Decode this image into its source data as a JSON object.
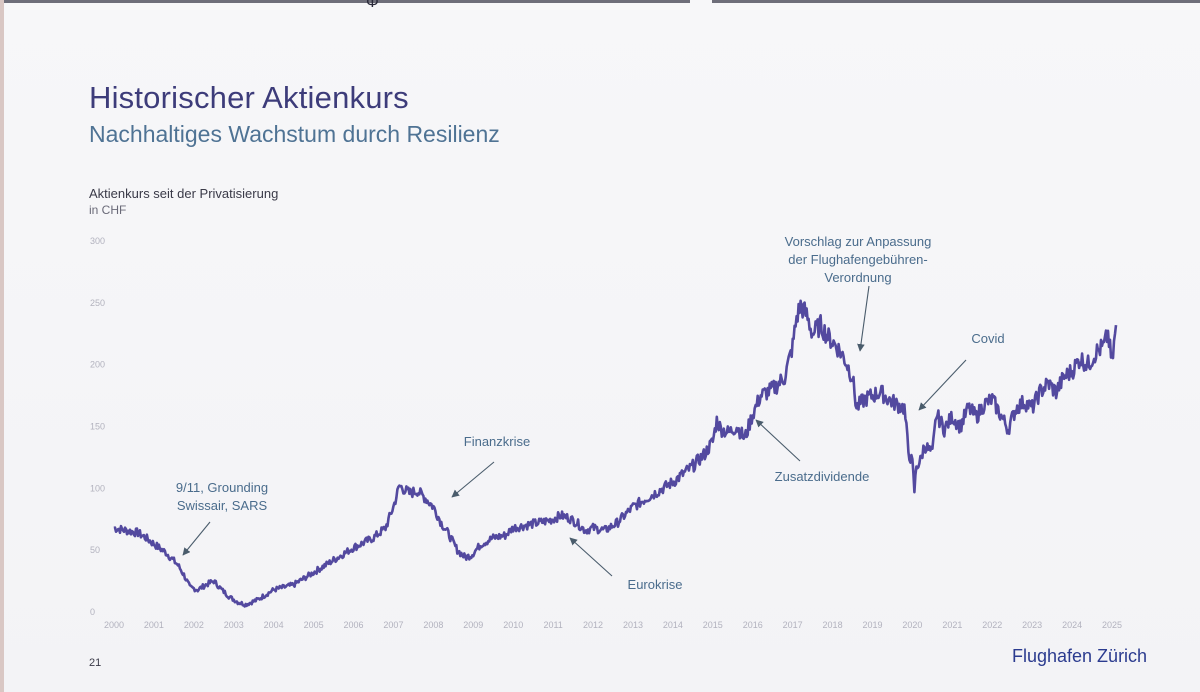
{
  "slide": {
    "title": "Historischer Aktienkurs",
    "subtitle": "Nachhaltiges Wachstum durch Resilienz",
    "chart_caption": "Aktienkurs seit der Privatisierung",
    "chart_unit": "in CHF",
    "page_number": "21",
    "logo_text": "Flughafen Zürich"
  },
  "colors": {
    "title": "#3d3c7a",
    "subtitle": "#4f7394",
    "line": "#4a3f9a",
    "annotation": "#4a6c8c",
    "logo": "#2b3b8f"
  },
  "chart_data": {
    "type": "line",
    "xlabel": "",
    "ylabel": "",
    "xlim": [
      2000,
      2025.2
    ],
    "ylim": [
      0,
      300
    ],
    "y_ticks": [
      0,
      50,
      100,
      150,
      200,
      250,
      300
    ],
    "x_ticks": [
      "2000",
      "2001",
      "2002",
      "2003",
      "2004",
      "2005",
      "2006",
      "2007",
      "2008",
      "2009",
      "2010",
      "2011",
      "2012",
      "2013",
      "2014",
      "2015",
      "2016",
      "2017",
      "2018",
      "2019",
      "2020",
      "2021",
      "2022",
      "2023",
      "2024",
      "2025"
    ],
    "grid": false,
    "legend": "none",
    "series": [
      {
        "x": [
          2000.0,
          2000.3,
          2000.6,
          2000.8,
          2001.0,
          2001.3,
          2001.6,
          2001.75,
          2001.9,
          2002.1,
          2002.3,
          2002.5,
          2002.7,
          2002.9,
          2003.1,
          2003.3,
          2003.6,
          2004.0,
          2004.5,
          2005.0,
          2005.5,
          2006.0,
          2006.5,
          2006.8,
          2007.0,
          2007.15,
          2007.4,
          2007.6,
          2007.8,
          2008.0,
          2008.2,
          2008.4,
          2008.6,
          2008.8,
          2008.95,
          2009.2,
          2009.5,
          2009.8,
          2010.0,
          2010.3,
          2010.6,
          2010.9,
          2011.2,
          2011.4,
          2011.6,
          2011.8,
          2012.0,
          2012.3,
          2012.6,
          2013.0,
          2013.5,
          2014.0,
          2014.5,
          2014.8,
          2015.0,
          2015.1,
          2015.2,
          2015.4,
          2015.6,
          2015.8,
          2016.0,
          2016.2,
          2016.5,
          2016.8,
          2017.0,
          2017.1,
          2017.2,
          2017.35,
          2017.5,
          2017.7,
          2017.9,
          2018.1,
          2018.3,
          2018.5,
          2018.6,
          2018.8,
          2019.0,
          2019.2,
          2019.4,
          2019.6,
          2019.8,
          2019.9,
          2020.0,
          2020.05,
          2020.1,
          2020.2,
          2020.3,
          2020.5,
          2020.6,
          2020.8,
          2021.0,
          2021.2,
          2021.4,
          2021.6,
          2021.8,
          2022.0,
          2022.2,
          2022.4,
          2022.6,
          2022.8,
          2023.0,
          2023.2,
          2023.4,
          2023.6,
          2023.8,
          2024.0,
          2024.2,
          2024.4,
          2024.6,
          2024.8,
          2024.9,
          2025.0,
          2025.1
        ],
        "values": [
          68,
          66,
          64,
          60,
          55,
          48,
          38,
          30,
          20,
          18,
          22,
          25,
          18,
          12,
          8,
          6,
          10,
          18,
          22,
          32,
          42,
          52,
          60,
          68,
          85,
          102,
          96,
          98,
          92,
          85,
          72,
          62,
          50,
          44,
          46,
          55,
          60,
          62,
          68,
          70,
          72,
          74,
          78,
          76,
          72,
          66,
          68,
          66,
          72,
          85,
          95,
          105,
          118,
          128,
          138,
          155,
          148,
          145,
          150,
          140,
          160,
          175,
          180,
          190,
          215,
          238,
          248,
          240,
          225,
          232,
          222,
          215,
          205,
          190,
          165,
          172,
          175,
          178,
          172,
          168,
          165,
          130,
          120,
          98,
          118,
          122,
          135,
          128,
          160,
          148,
          158,
          150,
          165,
          158,
          168,
          172,
          160,
          148,
          165,
          170,
          165,
          178,
          185,
          178,
          190,
          195,
          205,
          200,
          210,
          215,
          225,
          200,
          232
        ]
      }
    ],
    "annotations": [
      {
        "text": [
          "9/11, Grounding",
          "Swissair, SARS"
        ],
        "x": 2001.8,
        "y": 18
      },
      {
        "text": [
          "Finanzkrise"
        ],
        "x": 2008.5,
        "y": 92
      },
      {
        "text": [
          "Eurokrise"
        ],
        "x": 2011.5,
        "y": 62
      },
      {
        "text": [
          "Zusatzdividende"
        ],
        "x": 2016.1,
        "y": 158
      },
      {
        "text": [
          "Vorschlag zur Anpassung",
          "der Flughafengebühren-",
          "Verordnung"
        ],
        "x": 2018.7,
        "y": 205
      },
      {
        "text": [
          "Covid"
        ],
        "x": 2020.15,
        "y": 162
      }
    ]
  }
}
